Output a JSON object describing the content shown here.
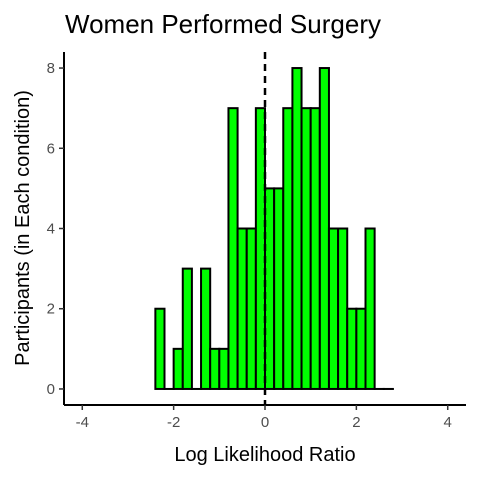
{
  "chart_data": {
    "type": "bar",
    "title": "Women Performed Surgery",
    "xlabel": "Log Likelihood Ratio",
    "ylabel": "Participants (in Each condition)",
    "xlim": [
      -4.4,
      4.4
    ],
    "ylim": [
      -0.4,
      8.4
    ],
    "xticks": [
      -4,
      -2,
      0,
      2,
      4
    ],
    "yticks": [
      0,
      2,
      4,
      6,
      8
    ],
    "bin_width": 0.2,
    "bins": [
      {
        "x": -2.3,
        "value": 2
      },
      {
        "x": -2.1,
        "value": 0
      },
      {
        "x": -1.9,
        "value": 1
      },
      {
        "x": -1.7,
        "value": 3
      },
      {
        "x": -1.5,
        "value": 0
      },
      {
        "x": -1.3,
        "value": 3
      },
      {
        "x": -1.1,
        "value": 1
      },
      {
        "x": -0.9,
        "value": 1
      },
      {
        "x": -0.7,
        "value": 7
      },
      {
        "x": -0.5,
        "value": 4
      },
      {
        "x": -0.3,
        "value": 4
      },
      {
        "x": -0.1,
        "value": 7
      },
      {
        "x": 0.1,
        "value": 5
      },
      {
        "x": 0.3,
        "value": 5
      },
      {
        "x": 0.5,
        "value": 7
      },
      {
        "x": 0.7,
        "value": 8
      },
      {
        "x": 0.9,
        "value": 7
      },
      {
        "x": 1.1,
        "value": 7
      },
      {
        "x": 1.3,
        "value": 8
      },
      {
        "x": 1.5,
        "value": 4
      },
      {
        "x": 1.7,
        "value": 4
      },
      {
        "x": 1.9,
        "value": 2
      },
      {
        "x": 2.1,
        "value": 2
      },
      {
        "x": 2.3,
        "value": 4
      },
      {
        "x": 2.5,
        "value": 0
      },
      {
        "x": 2.7,
        "value": 0
      }
    ],
    "reference_line_x": 0,
    "bar_color": "#00ff00",
    "grid": false,
    "legend": "none"
  }
}
